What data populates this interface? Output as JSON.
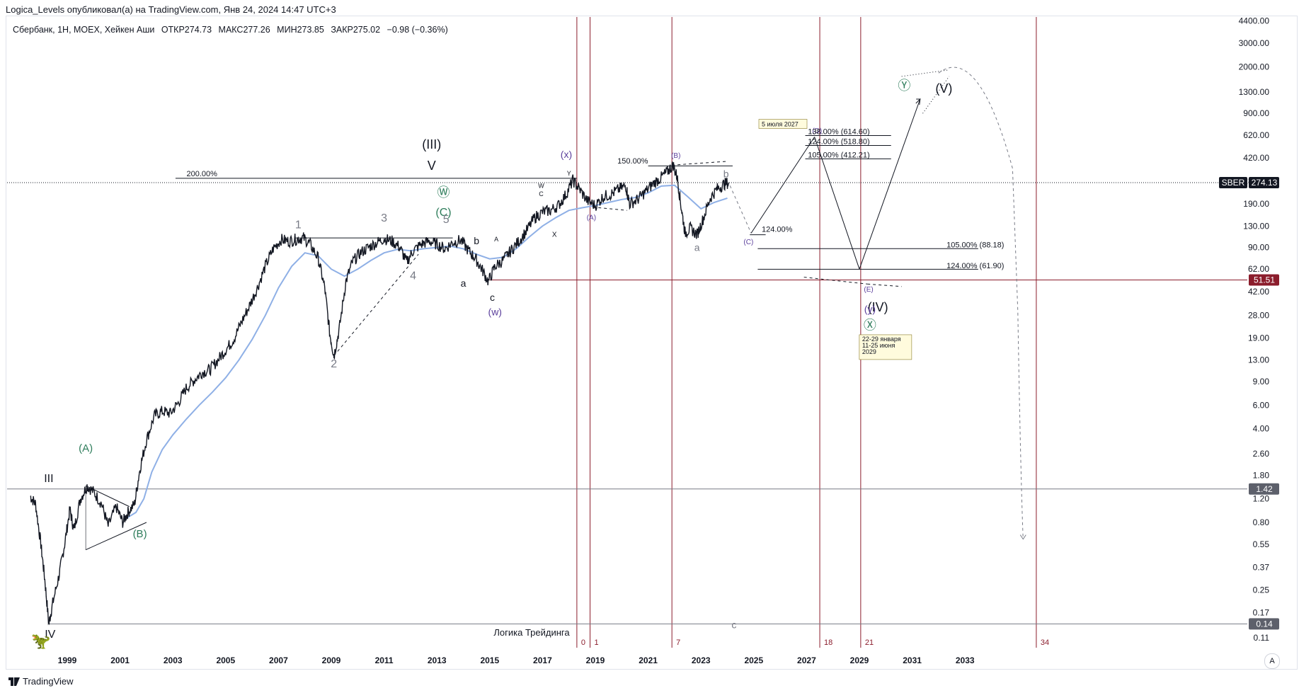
{
  "header": {
    "publisher_line": "Logica_Levels опубликовал(а) на TradingView.com, Янв 24, 2024 14:47 UTC+3"
  },
  "legend": {
    "symbol": "Сбербанк, 1Н, MOEX, Хейкен Аши",
    "open": "ОТКР274.73",
    "high": "МАКС277.26",
    "low": "МИН273.85",
    "close": "ЗАКР275.02",
    "change": "−0.98 (−0.36%)"
  },
  "footer": {
    "brand": "TradingView",
    "watermark": "Логика Трейдинга",
    "auto_scale_label": "A"
  },
  "colors": {
    "price": "#131722",
    "ma": "#8fb0e6",
    "cycle_lines": "#8b1d2c",
    "level_lines": "#131722",
    "wave_green": "#2e7d5b",
    "wave_purple": "#5b3f9c",
    "wave_gray": "#787b86",
    "price_tag_bg": "#131722",
    "support_tag_bg": "#8b1d2c",
    "gray_tag_bg": "#5d606b"
  },
  "chart_data": {
    "type": "line",
    "title": "",
    "xlabel": "",
    "ylabel": "",
    "scale": "log",
    "x_ticks": [
      "1999",
      "2001",
      "2003",
      "2005",
      "2007",
      "2009",
      "2011",
      "2013",
      "2015",
      "2017",
      "2019",
      "2021",
      "2023",
      "2025",
      "2027",
      "2029",
      "2031",
      "2033"
    ],
    "y_ticks": [
      "4400.00",
      "3000.00",
      "2000.00",
      "1300.00",
      "900.00",
      "620.00",
      "420.00",
      "280.00",
      "190.00",
      "130.00",
      "90.00",
      "62.00",
      "42.00",
      "28.00",
      "19.00",
      "13.00",
      "9.00",
      "6.00",
      "4.00",
      "2.60",
      "1.80",
      "1.20",
      "0.80",
      "0.55",
      "0.37",
      "0.25",
      "0.17",
      "0.11"
    ],
    "ylim": [
      0.105,
      4600
    ],
    "xlim": [
      1997.45,
      2036.4
    ],
    "series": [
      {
        "name": "",
        "points": [
          [
            1997.6,
            1.25
          ],
          [
            1997.8,
            1.1
          ],
          [
            1998.0,
            0.55
          ],
          [
            1998.15,
            0.3
          ],
          [
            1998.3,
            0.14
          ],
          [
            1998.45,
            0.2
          ],
          [
            1998.7,
            0.33
          ],
          [
            1998.9,
            0.55
          ],
          [
            1999.1,
            1.0
          ],
          [
            1999.25,
            0.7
          ],
          [
            1999.5,
            1.2
          ],
          [
            1999.75,
            1.5
          ],
          [
            2000.0,
            1.35
          ],
          [
            2000.3,
            1.1
          ],
          [
            2000.55,
            0.75
          ],
          [
            2000.85,
            1.05
          ],
          [
            2001.1,
            0.8
          ],
          [
            2001.3,
            0.95
          ],
          [
            2001.55,
            1.1
          ],
          [
            2001.75,
            2.0
          ],
          [
            2002.0,
            3.3
          ],
          [
            2002.3,
            5.0
          ],
          [
            2002.6,
            5.4
          ],
          [
            2002.9,
            5.2
          ],
          [
            2003.2,
            6.2
          ],
          [
            2003.5,
            8.0
          ],
          [
            2003.8,
            9.2
          ],
          [
            2004.1,
            10.5
          ],
          [
            2004.4,
            11.0
          ],
          [
            2004.7,
            13.0
          ],
          [
            2005.0,
            15.5
          ],
          [
            2005.3,
            18.5
          ],
          [
            2005.6,
            25.0
          ],
          [
            2005.9,
            33.0
          ],
          [
            2006.2,
            45.0
          ],
          [
            2006.5,
            65.0
          ],
          [
            2006.8,
            88.0
          ],
          [
            2007.1,
            103.0
          ],
          [
            2007.4,
            100.0
          ],
          [
            2007.7,
            104.0
          ],
          [
            2007.95,
            106.0
          ],
          [
            2008.2,
            95.0
          ],
          [
            2008.5,
            75.0
          ],
          [
            2008.75,
            45.0
          ],
          [
            2008.95,
            20.0
          ],
          [
            2009.1,
            14.0
          ],
          [
            2009.3,
            22.0
          ],
          [
            2009.55,
            50.0
          ],
          [
            2009.8,
            70.0
          ],
          [
            2010.1,
            82.0
          ],
          [
            2010.4,
            90.0
          ],
          [
            2010.7,
            97.0
          ],
          [
            2011.0,
            105.0
          ],
          [
            2011.3,
            100.0
          ],
          [
            2011.6,
            90.0
          ],
          [
            2011.85,
            70.0
          ],
          [
            2012.1,
            85.0
          ],
          [
            2012.4,
            95.0
          ],
          [
            2012.7,
            100.0
          ],
          [
            2013.0,
            95.0
          ],
          [
            2013.3,
            88.0
          ],
          [
            2013.6,
            98.0
          ],
          [
            2013.9,
            102.0
          ],
          [
            2014.2,
            85.0
          ],
          [
            2014.45,
            75.0
          ],
          [
            2014.7,
            62.0
          ],
          [
            2014.95,
            50.0
          ],
          [
            2015.2,
            65.0
          ],
          [
            2015.5,
            72.0
          ],
          [
            2015.8,
            85.0
          ],
          [
            2016.1,
            100.0
          ],
          [
            2016.4,
            120.0
          ],
          [
            2016.7,
            150.0
          ],
          [
            2017.0,
            165.0
          ],
          [
            2017.3,
            170.0
          ],
          [
            2017.6,
            185.0
          ],
          [
            2017.9,
            225.0
          ],
          [
            2018.15,
            285.0
          ],
          [
            2018.4,
            245.0
          ],
          [
            2018.7,
            200.0
          ],
          [
            2019.0,
            185.0
          ],
          [
            2019.3,
            215.0
          ],
          [
            2019.6,
            225.0
          ],
          [
            2019.9,
            245.0
          ],
          [
            2020.15,
            260.0
          ],
          [
            2020.3,
            190.0
          ],
          [
            2020.6,
            205.0
          ],
          [
            2020.9,
            235.0
          ],
          [
            2021.2,
            270.0
          ],
          [
            2021.5,
            300.0
          ],
          [
            2021.75,
            335.0
          ],
          [
            2021.95,
            370.0
          ],
          [
            2022.1,
            300.0
          ],
          [
            2022.25,
            180.0
          ],
          [
            2022.4,
            115.0
          ],
          [
            2022.6,
            125.0
          ],
          [
            2022.85,
            112.0
          ],
          [
            2023.1,
            150.0
          ],
          [
            2023.35,
            210.0
          ],
          [
            2023.6,
            245.0
          ],
          [
            2023.85,
            265.0
          ],
          [
            2024.05,
            275.0
          ]
        ]
      },
      {
        "name": "",
        "points": [
          [
            2001.2,
            0.85
          ],
          [
            2001.6,
            0.95
          ],
          [
            2001.9,
            1.2
          ],
          [
            2002.2,
            1.9
          ],
          [
            2002.6,
            2.8
          ],
          [
            2003.0,
            3.6
          ],
          [
            2003.5,
            4.7
          ],
          [
            2004.0,
            6.0
          ],
          [
            2004.5,
            7.5
          ],
          [
            2005.0,
            9.6
          ],
          [
            2005.5,
            13.0
          ],
          [
            2006.0,
            18.5
          ],
          [
            2006.5,
            28.0
          ],
          [
            2007.0,
            45.0
          ],
          [
            2007.5,
            65.0
          ],
          [
            2008.0,
            82.0
          ],
          [
            2008.5,
            78.0
          ],
          [
            2009.0,
            62.0
          ],
          [
            2009.5,
            55.0
          ],
          [
            2010.0,
            62.0
          ],
          [
            2010.5,
            72.0
          ],
          [
            2011.0,
            82.0
          ],
          [
            2011.5,
            87.0
          ],
          [
            2012.0,
            85.0
          ],
          [
            2012.5,
            88.0
          ],
          [
            2013.0,
            90.0
          ],
          [
            2013.5,
            92.0
          ],
          [
            2014.0,
            88.0
          ],
          [
            2014.5,
            80.0
          ],
          [
            2015.0,
            74.0
          ],
          [
            2015.5,
            76.0
          ],
          [
            2016.0,
            88.0
          ],
          [
            2016.5,
            108.0
          ],
          [
            2017.0,
            130.0
          ],
          [
            2017.5,
            150.0
          ],
          [
            2018.0,
            170.0
          ],
          [
            2018.5,
            178.0
          ],
          [
            2019.0,
            185.0
          ],
          [
            2019.5,
            195.0
          ],
          [
            2020.0,
            205.0
          ],
          [
            2020.5,
            212.0
          ],
          [
            2021.0,
            230.0
          ],
          [
            2021.5,
            258.0
          ],
          [
            2022.0,
            262.0
          ],
          [
            2022.5,
            215.0
          ],
          [
            2023.0,
            175.0
          ],
          [
            2023.5,
            195.0
          ],
          [
            2024.0,
            210.0
          ]
        ]
      }
    ],
    "current_price_label": "274.13",
    "symbol_tag": "SBER",
    "level_tags": [
      "51.51",
      "1.42",
      "0.14"
    ],
    "cycle_markers": [
      "0",
      "1",
      "7",
      "18",
      "21",
      "34"
    ],
    "fib_labels": [
      "200.00%",
      "150.00%",
      "124.00%",
      "138.00% (614.60)",
      "124.00% (518.80)",
      "105.00% (412.21)",
      "105.00% (88.18)",
      "124.00% (61.90)"
    ],
    "wave_labels_black": [
      "III",
      "IV",
      "(III)",
      "V",
      "(IV)",
      "(V)",
      "a",
      "b",
      "c"
    ],
    "wave_labels_green": [
      "(A)",
      "(B)",
      "Ⓦ",
      "(C)",
      "Ⓧ",
      "Ⓨ"
    ],
    "wave_labels_purple": [
      "(x)",
      "(w)",
      "(y)",
      "(A)",
      "(B)",
      "(C)",
      "(D)",
      "(E)"
    ],
    "wave_labels_gray": [
      "1",
      "2",
      "3",
      "4",
      "5",
      "a",
      "b",
      "c"
    ],
    "wave_labels_small_black": [
      "A",
      "B",
      "W",
      "C",
      "X",
      "Y"
    ],
    "annotations": [
      "5 июля 2027",
      "22-29 января",
      "11-25 июня",
      "2029"
    ],
    "grid": false,
    "legend_placement": "top-left"
  }
}
